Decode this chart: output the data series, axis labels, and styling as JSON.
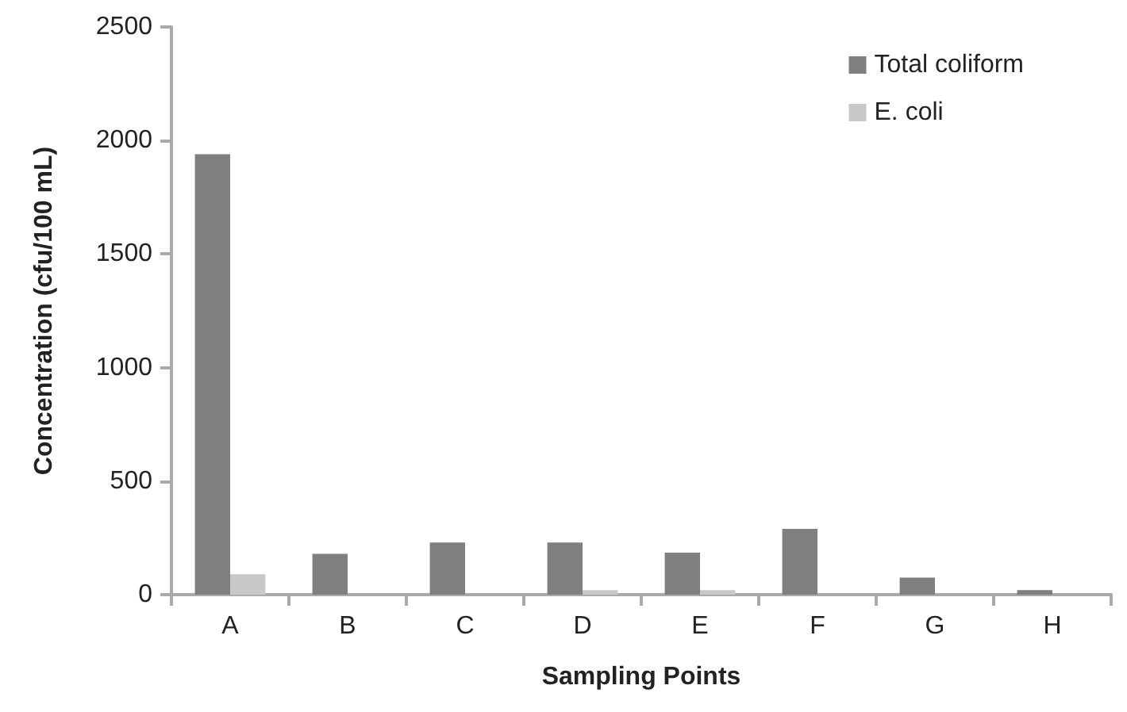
{
  "chart_data": {
    "type": "bar",
    "xlabel": "Sampling Points",
    "ylabel": "Concentration (cfu/100 mL)",
    "categories": [
      "A",
      "B",
      "C",
      "D",
      "E",
      "F",
      "G",
      "H"
    ],
    "series": [
      {
        "name": "Total coliform",
        "color": "#7f7f7f",
        "values": [
          1940,
          180,
          230,
          230,
          185,
          290,
          75,
          20
        ]
      },
      {
        "name": "E. coli",
        "color": "#c8c8c8",
        "values": [
          90,
          null,
          0,
          20,
          20,
          null,
          0,
          0
        ]
      }
    ],
    "ylim": [
      0,
      2500
    ],
    "yticks": [
      0,
      500,
      1000,
      1500,
      2000,
      2500
    ],
    "grid": false,
    "legend": "top right"
  }
}
